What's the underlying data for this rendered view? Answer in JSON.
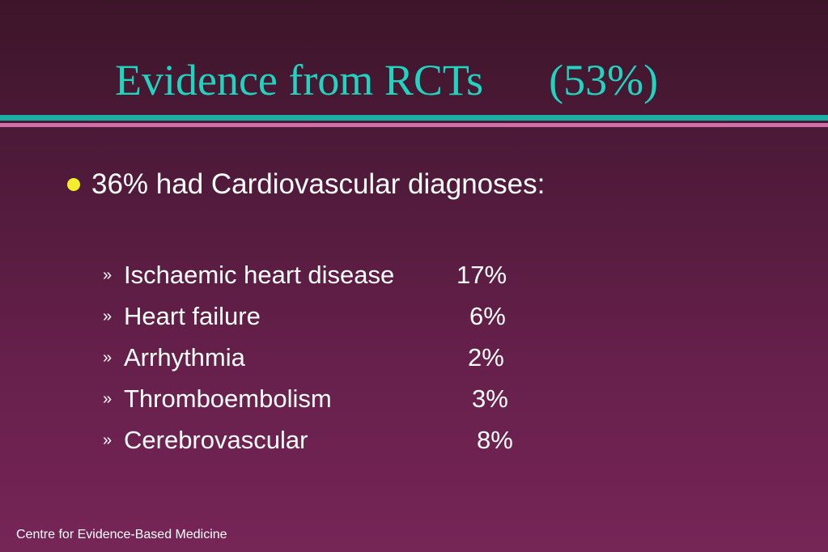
{
  "slide": {
    "title": "Evidence from RCTs      (53%)",
    "colors": {
      "title": "#20d4c0",
      "rule_teal": "#1aaea2",
      "rule_pink": "#cf6fa6",
      "bullet": "#f3ee2c",
      "text": "#ffffff"
    }
  },
  "bullet": {
    "icon": "yellow-dot-bullet",
    "text": "36% had Cardiovascular diagnoses:"
  },
  "sub_items": [
    {
      "marker": "»",
      "label": "Ischaemic heart disease",
      "value": "17%"
    },
    {
      "marker": "»",
      "label": "Heart failure",
      "value": "6%"
    },
    {
      "marker": "»",
      "label": "Arrhythmia",
      "value": "2%"
    },
    {
      "marker": "»",
      "label": "Thromboembolism",
      "value": "3%"
    },
    {
      "marker": "»",
      "label": "Cerebrovascular",
      "value": "8%"
    }
  ],
  "footer": {
    "text": "Centre for Evidence-Based Medicine"
  }
}
